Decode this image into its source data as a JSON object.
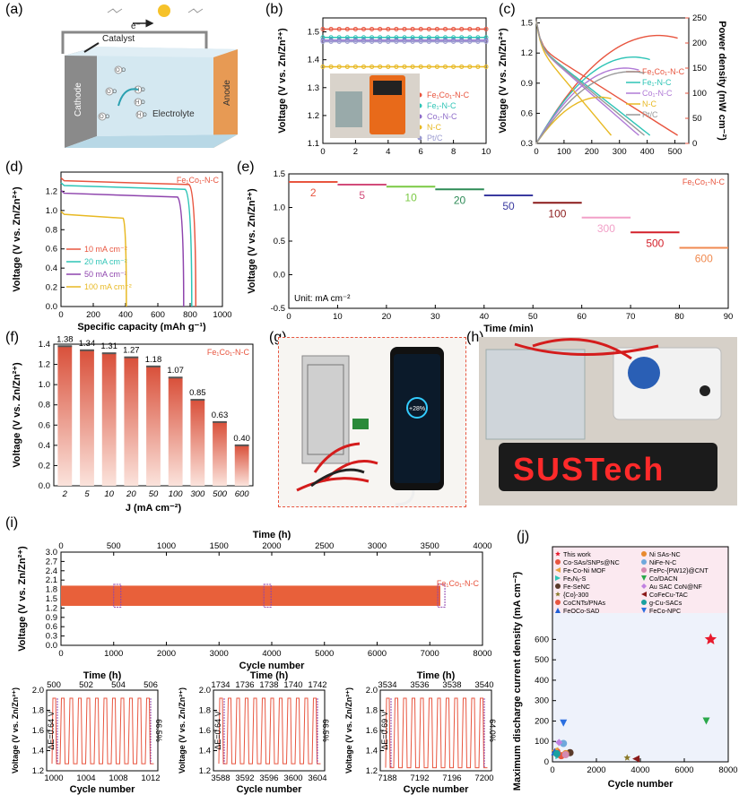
{
  "panel_labels": [
    "(a)",
    "(b)",
    "(c)",
    "(d)",
    "(e)",
    "(f)",
    "(g)",
    "(h)",
    "(i)",
    "(j)"
  ],
  "schematic_a": {
    "catalyst": "Catalyst",
    "electron": "e⁻",
    "cathode": "Cathode",
    "anode": "Anode",
    "electrolyte": "Electrolyte",
    "molecules": [
      "O O",
      "O O",
      "H O",
      "H O",
      "H O",
      "O O"
    ]
  },
  "photo_h_sign": "SUSTech",
  "photo_g_screen": "+28%",
  "chart_data": [
    {
      "id": "b",
      "type": "line",
      "xlabel": "Time (min)",
      "ylabel": "Voltage (V vs. Zn/Zn²⁺)",
      "xlim": [
        0,
        10
      ],
      "ylim": [
        1.1,
        1.55
      ],
      "xticks": [
        0,
        2,
        4,
        6,
        8,
        10
      ],
      "yticks": [
        1.1,
        1.2,
        1.3,
        1.4,
        1.5
      ],
      "series": [
        {
          "name": "Fe₁Co₁-N-C",
          "color": "#e8553f",
          "y": 1.51
        },
        {
          "name": "Fe₁-N-C",
          "color": "#2ec4b6",
          "y": 1.48
        },
        {
          "name": "Co₁-N-C",
          "color": "#8e6cc9",
          "y": 1.47
        },
        {
          "name": "N-C",
          "color": "#e8b923",
          "y": 1.375
        },
        {
          "name": "Pt/C",
          "color": "#9a9ad0",
          "y": 1.465
        }
      ]
    },
    {
      "id": "c",
      "type": "line",
      "xlabel": "J (mA cm⁻²)",
      "ylabel": "Voltage (V vs. Zn/Zn²⁺)",
      "y2label": "Power density (mW cm⁻²)",
      "xlim": [
        0,
        550
      ],
      "ylim": [
        0.3,
        1.55
      ],
      "y2lim": [
        0,
        250
      ],
      "xticks": [
        0,
        100,
        200,
        300,
        400,
        500
      ],
      "yticks": [
        0.3,
        0.6,
        0.9,
        1.2,
        1.5
      ],
      "y2ticks": [
        0,
        50,
        100,
        150,
        200,
        250
      ],
      "series": [
        {
          "name": "Fe₁Co₁-N-C",
          "color": "#e8553f",
          "jmax": 510,
          "pmax": 215,
          "jpk": 440
        },
        {
          "name": "Fe₁-N-C",
          "color": "#2ec4b6",
          "jmax": 410,
          "pmax": 172,
          "jpk": 350
        },
        {
          "name": "Co₁-N-C",
          "color": "#b07ad6",
          "jmax": 370,
          "pmax": 150,
          "jpk": 320
        },
        {
          "name": "N-C",
          "color": "#e8b923",
          "jmax": 270,
          "pmax": 92,
          "jpk": 230
        },
        {
          "name": "Pt/C",
          "color": "#999999",
          "jmax": 390,
          "pmax": 143,
          "jpk": 340
        }
      ]
    },
    {
      "id": "d",
      "type": "line",
      "xlabel": "Specific capacity (mAh g⁻¹)",
      "ylabel": "Voltage (V vs. Zn/Zn²⁺)",
      "xlim": [
        0,
        1000
      ],
      "ylim": [
        0,
        1.4
      ],
      "xticks": [
        0,
        200,
        400,
        600,
        800,
        1000
      ],
      "yticks": [
        0,
        0.2,
        0.4,
        0.6,
        0.8,
        1.0,
        1.2
      ],
      "annotation": "Fe₁Co₁-N-C",
      "series": [
        {
          "name": "10 mA cm⁻²",
          "color": "#e8553f",
          "v": 1.31,
          "cap": 835
        },
        {
          "name": "20 mA cm⁻²",
          "color": "#2ec4b6",
          "v": 1.26,
          "cap": 810
        },
        {
          "name": "50 mA cm⁻²",
          "color": "#8e44ad",
          "v": 1.18,
          "cap": 760
        },
        {
          "name": "100 mA cm⁻²",
          "color": "#e8b923",
          "v": 0.96,
          "cap": 405
        }
      ]
    },
    {
      "id": "e",
      "type": "line",
      "xlabel": "Time (min)",
      "ylabel": "Voltage (V vs. Zn/Zn²⁺)",
      "xlim": [
        0,
        90
      ],
      "ylim": [
        -0.5,
        1.5
      ],
      "xticks": [
        0,
        10,
        20,
        30,
        40,
        50,
        60,
        70,
        80,
        90
      ],
      "yticks": [
        -0.5,
        0.0,
        0.5,
        1.0,
        1.5
      ],
      "annotation": "Fe₁Co₁-N-C",
      "unit_note": "Unit: mA cm⁻²",
      "steps": [
        {
          "label": "2",
          "v": 1.38,
          "color": "#e8553f"
        },
        {
          "label": "5",
          "v": 1.34,
          "color": "#d24b7a"
        },
        {
          "label": "10",
          "v": 1.31,
          "color": "#7ac943"
        },
        {
          "label": "20",
          "v": 1.27,
          "color": "#2e8b57"
        },
        {
          "label": "50",
          "v": 1.18,
          "color": "#3a3aa0"
        },
        {
          "label": "100",
          "v": 1.07,
          "color": "#8b1a1a"
        },
        {
          "label": "300",
          "v": 0.85,
          "color": "#f2a0c8"
        },
        {
          "label": "500",
          "v": 0.63,
          "color": "#d4202a"
        },
        {
          "label": "600",
          "v": 0.4,
          "color": "#f08a50"
        }
      ]
    },
    {
      "id": "f",
      "type": "bar",
      "xlabel": "J (mA cm⁻²)",
      "ylabel": "Voltage (V vs. Zn/Zn²⁺)",
      "ylim": [
        0,
        1.4
      ],
      "yticks": [
        0.0,
        0.2,
        0.4,
        0.6,
        0.8,
        1.0,
        1.2,
        1.4
      ],
      "annotation": "Fe₁Co₁-N-C",
      "categories": [
        "2",
        "5",
        "10",
        "20",
        "50",
        "100",
        "300",
        "500",
        "600"
      ],
      "values": [
        1.38,
        1.34,
        1.31,
        1.27,
        1.18,
        1.07,
        0.85,
        0.63,
        0.4
      ],
      "value_labels": [
        "1.38",
        "1.34",
        "1.31",
        "1.27",
        "1.18",
        "1.07",
        "0.85",
        "0.63",
        "0.40"
      ]
    },
    {
      "id": "i",
      "type": "line",
      "xlabel": "Cycle number",
      "x2label": "Time (h)",
      "ylabel": "Voltage (V vs. Zn/Zn²⁺)",
      "xlim": [
        0,
        8000
      ],
      "x2lim": [
        0,
        4000
      ],
      "ylim": [
        0,
        3.0
      ],
      "xticks": [
        0,
        1000,
        2000,
        3000,
        4000,
        5000,
        6000,
        7000,
        8000
      ],
      "x2ticks": [
        0,
        500,
        1000,
        1500,
        2000,
        2500,
        3000,
        3500,
        4000
      ],
      "yticks": [
        0,
        0.3,
        0.6,
        0.9,
        1.2,
        1.5,
        1.8,
        2.1,
        2.4,
        2.7,
        3.0
      ],
      "annotation": "Fe₁Co₁-N-C",
      "charge_v": 1.92,
      "discharge_v": 1.27,
      "end_cycle": 7200
    },
    {
      "id": "i_zoom",
      "type": "line",
      "panels": [
        {
          "xticks": [
            "1000",
            "1004",
            "1008",
            "1012"
          ],
          "x2ticks": [
            "500",
            "502",
            "504",
            "506"
          ],
          "dE": "ΔE=0.64 V",
          "eff": "66.5%"
        },
        {
          "xticks": [
            "3588",
            "3592",
            "3596",
            "3600",
            "3604"
          ],
          "x2ticks": [
            "1734",
            "1736",
            "1738",
            "1740",
            "1742"
          ],
          "dE": "ΔE=0.64 V",
          "eff": "66.5%"
        },
        {
          "xticks": [
            "7188",
            "7192",
            "7196",
            "7200"
          ],
          "x2ticks": [
            "3534",
            "3536",
            "3538",
            "3540"
          ],
          "dE": "ΔE=0.69 V",
          "eff": "64.0%"
        }
      ],
      "xlabel": "Cycle number",
      "x2label": "Time (h)",
      "ylabel": "Voltage (V vs. Zn/Zn²⁺)",
      "yticks": [
        "1.2",
        "1.4",
        "1.6",
        "1.8",
        "2.0"
      ]
    },
    {
      "id": "j",
      "type": "scatter",
      "xlabel": "Cycle number",
      "ylabel": "Maximum discharge current density (mA cm⁻²)",
      "xlim": [
        0,
        8000
      ],
      "ylim": [
        0,
        650
      ],
      "xticks": [
        0,
        2000,
        4000,
        6000,
        8000
      ],
      "yticks": [
        0,
        100,
        200,
        300,
        400,
        500,
        600
      ],
      "points": [
        {
          "name": "This work",
          "x": 7200,
          "y": 600,
          "color": "#e8192c",
          "shape": "star"
        },
        {
          "name": "Co-SAs/SNPs@NC",
          "x": 200,
          "y": 50,
          "color": "#e8553f",
          "shape": "circle"
        },
        {
          "name": "Fe-Co-Ni MOF",
          "x": 100,
          "y": 55,
          "color": "#e8a33f",
          "shape": "tri-left"
        },
        {
          "name": "FeₓNᵧ-S",
          "x": 300,
          "y": 30,
          "color": "#2ec4b6",
          "shape": "tri-right"
        },
        {
          "name": "Fe-SeNC",
          "x": 800,
          "y": 45,
          "color": "#5a3a2a",
          "shape": "circle"
        },
        {
          "name": "{Co}-300",
          "x": 3400,
          "y": 20,
          "color": "#8b7a2a",
          "shape": "star"
        },
        {
          "name": "CoCNTs/PNAs",
          "x": 400,
          "y": 30,
          "color": "#e8553f",
          "shape": "circle"
        },
        {
          "name": "FeOCo-SAD",
          "x": 100,
          "y": 50,
          "color": "#1f5fd6",
          "shape": "tri-up"
        },
        {
          "name": "Ni SAs-NC",
          "x": 600,
          "y": 40,
          "color": "#e88a2f",
          "shape": "circle"
        },
        {
          "name": "NiFe-N-C",
          "x": 500,
          "y": 90,
          "color": "#6fa8dc",
          "shape": "circle"
        },
        {
          "name": "FePc-{PW12}@CNT",
          "x": 600,
          "y": 35,
          "color": "#d48ab0",
          "shape": "circle"
        },
        {
          "name": "Co/DACN",
          "x": 7000,
          "y": 200,
          "color": "#2aa84a",
          "shape": "tri-down"
        },
        {
          "name": "Au SAC CoN@NF",
          "x": 300,
          "y": 95,
          "color": "#c080e0",
          "shape": "diamond"
        },
        {
          "name": "CoFeCu-TAC",
          "x": 3800,
          "y": 15,
          "color": "#8b1a1a",
          "shape": "tri-left"
        },
        {
          "name": "g-Cu-SACs",
          "x": 200,
          "y": 40,
          "color": "#1aa0a0",
          "shape": "circle"
        },
        {
          "name": "FeCo-NPC",
          "x": 500,
          "y": 190,
          "color": "#2a6fe0",
          "shape": "tri-down"
        }
      ]
    }
  ]
}
